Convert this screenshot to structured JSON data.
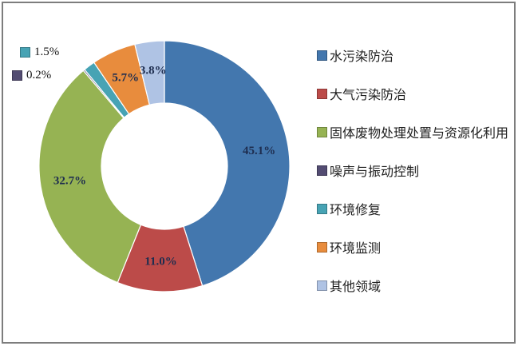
{
  "figure": {
    "background": "#ffffff",
    "border_color": "#7d7d7d"
  },
  "chart_data": {
    "type": "pie",
    "subtype": "donut",
    "title": "",
    "legend_position": "right",
    "direction": "clockwise",
    "start_angle_deg": 0,
    "donut_hole_ratio": 0.5,
    "categories": [
      "水污染防治",
      "大气污染防治",
      "固体废物处理处置与资源化利用",
      "噪声与振动控制",
      "环境修复",
      "环境监测",
      "其他领域"
    ],
    "values": [
      45.1,
      11.0,
      32.7,
      0.2,
      1.5,
      5.7,
      3.8
    ],
    "labels": [
      "45.1%",
      "11.0%",
      "32.7%",
      "0.2%",
      "1.5%",
      "5.7%",
      "3.8%"
    ],
    "colors": [
      "#4377AE",
      "#BC4B49",
      "#96B353",
      "#534C72",
      "#47A3B4",
      "#E88C3D",
      "#AFC3E4"
    ],
    "label_color": "#1e2d4f",
    "callouts": [
      {
        "index": 4,
        "label": "1.5%",
        "category": "环境修复"
      },
      {
        "index": 3,
        "label": "0.2%",
        "category": "噪声与振动控制"
      }
    ]
  }
}
